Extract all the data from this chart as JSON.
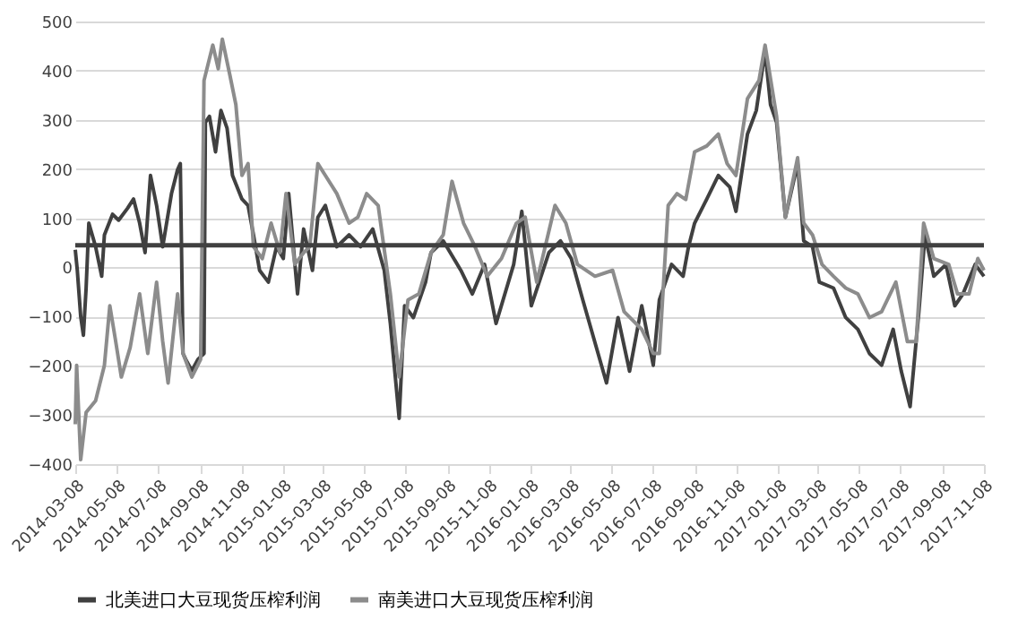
{
  "chart_data": {
    "type": "line",
    "xlim": [
      "2014-03-08",
      "2017-11-08"
    ],
    "xticks": [
      "2014-03-08",
      "2014-05-08",
      "2014-07-08",
      "2014-09-08",
      "2014-11-08",
      "2015-01-08",
      "2015-03-08",
      "2015-05-08",
      "2015-07-08",
      "2015-09-08",
      "2015-11-08",
      "2016-01-08",
      "2016-03-08",
      "2016-05-08",
      "2016-07-08",
      "2016-09-08",
      "2016-11-08",
      "2017-01-08",
      "2017-03-08",
      "2017-05-08",
      "2017-07-08",
      "2017-09-08",
      "2017-11-08"
    ],
    "ylim": [
      -400,
      500
    ],
    "yticks": [
      -400,
      -300,
      -200,
      -100,
      0,
      100,
      200,
      300,
      400,
      500
    ],
    "grid": "y",
    "legend": "bottom",
    "ref_lines": [
      {
        "axis": "y",
        "value": 45,
        "color": "#404040"
      }
    ],
    "series": [
      {
        "name": "北美进口大豆现货压榨利润",
        "color": "#404040",
        "x": [
          "2014-03-08",
          "2014-03-11",
          "2014-03-16",
          "2014-03-20",
          "2014-03-24",
          "2014-03-28",
          "2014-04-07",
          "2014-04-16",
          "2014-04-20",
          "2014-05-02",
          "2014-05-11",
          "2014-05-24",
          "2014-06-02",
          "2014-06-11",
          "2014-06-19",
          "2014-06-27",
          "2014-07-06",
          "2014-07-15",
          "2014-07-28",
          "2014-08-06",
          "2014-08-10",
          "2014-08-14",
          "2014-08-18",
          "2014-08-27",
          "2014-09-05",
          "2014-09-14",
          "2014-09-16",
          "2014-09-22",
          "2014-10-01",
          "2014-10-09",
          "2014-10-18",
          "2014-10-26",
          "2014-11-09",
          "2014-11-18",
          "2014-11-26",
          "2014-12-05",
          "2014-12-18",
          "2014-12-30",
          "2015-01-09",
          "2015-01-17",
          "2015-01-30",
          "2015-02-08",
          "2015-02-21",
          "2015-03-01",
          "2015-03-12",
          "2015-03-29",
          "2015-04-16",
          "2015-05-03",
          "2015-05-21",
          "2015-06-07",
          "2015-06-16",
          "2015-06-29",
          "2015-07-07",
          "2015-07-20",
          "2015-08-07",
          "2015-08-15",
          "2015-09-02",
          "2015-09-28",
          "2015-10-15",
          "2015-11-02",
          "2015-11-19",
          "2015-12-15",
          "2015-12-27",
          "2016-01-10",
          "2016-02-05",
          "2016-02-22",
          "2016-03-09",
          "2016-03-26",
          "2016-04-30",
          "2016-05-17",
          "2016-06-03",
          "2016-06-21",
          "2016-07-08",
          "2016-07-17",
          "2016-08-04",
          "2016-08-21",
          "2016-08-29",
          "2016-09-07",
          "2016-09-25",
          "2016-10-12",
          "2016-10-29",
          "2016-11-07",
          "2016-11-24",
          "2016-12-07",
          "2016-12-20",
          "2016-12-28",
          "2017-01-06",
          "2017-01-19",
          "2017-02-06",
          "2017-02-15",
          "2017-02-28",
          "2017-03-10",
          "2017-03-31",
          "2017-04-18",
          "2017-05-06",
          "2017-05-23",
          "2017-06-10",
          "2017-06-27",
          "2017-07-09",
          "2017-07-22",
          "2017-08-04",
          "2017-08-13",
          "2017-08-26",
          "2017-09-13",
          "2017-09-26",
          "2017-10-08",
          "2017-10-26",
          "2017-11-08"
        ],
        "values": [
          36,
          -6,
          -100,
          -138,
          -42,
          90,
          42,
          -18,
          66,
          108,
          96,
          120,
          139,
          90,
          30,
          187,
          126,
          42,
          150,
          199,
          211,
          -175,
          -187,
          -210,
          -187,
          -175,
          295,
          307,
          235,
          319,
          283,
          187,
          139,
          126,
          66,
          -6,
          -30,
          42,
          18,
          150,
          -54,
          78,
          -6,
          102,
          126,
          42,
          66,
          42,
          78,
          -6,
          -114,
          -307,
          -78,
          -102,
          -30,
          30,
          54,
          -6,
          -54,
          6,
          -114,
          6,
          114,
          -78,
          30,
          54,
          18,
          -66,
          -235,
          -102,
          -211,
          -78,
          -199,
          -66,
          6,
          -18,
          42,
          90,
          139,
          187,
          163,
          114,
          271,
          319,
          440,
          331,
          295,
          102,
          211,
          54,
          42,
          -30,
          -42,
          -102,
          -126,
          -175,
          -199,
          -126,
          -211,
          -283,
          -90,
          66,
          -18,
          6,
          -78,
          -54,
          6,
          -18
        ]
      },
      {
        "name": "南美进口大豆现货压榨利润",
        "color": "#8c8c8c",
        "x": [
          "2014-03-08",
          "2014-03-10",
          "2014-03-16",
          "2014-03-24",
          "2014-04-07",
          "2014-04-20",
          "2014-04-28",
          "2014-05-06",
          "2014-05-15",
          "2014-05-28",
          "2014-06-11",
          "2014-06-23",
          "2014-07-06",
          "2014-07-15",
          "2014-07-23",
          "2014-08-06",
          "2014-08-14",
          "2014-08-27",
          "2014-09-09",
          "2014-09-14",
          "2014-09-27",
          "2014-10-05",
          "2014-10-11",
          "2014-10-22",
          "2014-10-31",
          "2014-11-09",
          "2014-11-18",
          "2014-11-26",
          "2014-12-09",
          "2014-12-22",
          "2015-01-04",
          "2015-01-13",
          "2015-01-26",
          "2015-02-08",
          "2015-02-17",
          "2015-03-01",
          "2015-03-12",
          "2015-03-29",
          "2015-04-16",
          "2015-04-29",
          "2015-05-12",
          "2015-05-29",
          "2015-06-16",
          "2015-06-29",
          "2015-07-12",
          "2015-07-28",
          "2015-08-15",
          "2015-09-02",
          "2015-09-15",
          "2015-10-02",
          "2015-10-19",
          "2015-11-06",
          "2015-11-27",
          "2015-12-19",
          "2016-01-01",
          "2016-01-18",
          "2016-02-14",
          "2016-03-01",
          "2016-03-18",
          "2016-04-13",
          "2016-05-09",
          "2016-05-26",
          "2016-06-21",
          "2016-07-08",
          "2016-07-17",
          "2016-07-30",
          "2016-08-12",
          "2016-08-25",
          "2016-09-07",
          "2016-09-25",
          "2016-10-12",
          "2016-10-25",
          "2016-11-07",
          "2016-11-24",
          "2016-12-11",
          "2016-12-20",
          "2017-01-06",
          "2017-01-19",
          "2017-02-06",
          "2017-02-15",
          "2017-02-28",
          "2017-03-14",
          "2017-03-31",
          "2017-04-18",
          "2017-05-06",
          "2017-05-23",
          "2017-06-10",
          "2017-07-01",
          "2017-07-18",
          "2017-07-31",
          "2017-08-11",
          "2017-08-26",
          "2017-09-17",
          "2017-09-30",
          "2017-10-17",
          "2017-10-30",
          "2017-11-08"
        ],
        "values": [
          -319,
          -199,
          -391,
          -295,
          -271,
          -199,
          -78,
          -145,
          -223,
          -163,
          -54,
          -175,
          -30,
          -150,
          -235,
          -54,
          -175,
          -223,
          -187,
          380,
          452,
          404,
          464,
          392,
          331,
          187,
          211,
          42,
          18,
          90,
          30,
          150,
          6,
          30,
          42,
          211,
          187,
          150,
          90,
          102,
          150,
          126,
          -54,
          -223,
          -66,
          -54,
          30,
          66,
          175,
          90,
          42,
          -18,
          18,
          90,
          102,
          -30,
          126,
          90,
          6,
          -18,
          -6,
          -90,
          -126,
          -175,
          -175,
          126,
          150,
          138,
          235,
          247,
          271,
          211,
          187,
          343,
          380,
          452,
          307,
          102,
          223,
          90,
          66,
          6,
          -18,
          -42,
          -54,
          -102,
          -90,
          -30,
          -151,
          -151,
          90,
          18,
          6,
          -54,
          -54,
          18,
          -6
        ]
      }
    ]
  }
}
